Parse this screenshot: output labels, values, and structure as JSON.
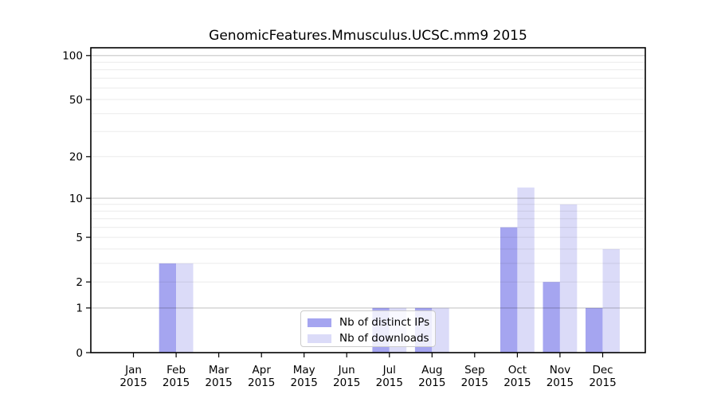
{
  "title": "GenomicFeatures.Mmusculus.UCSC.mm9 2015",
  "chart_data": {
    "type": "bar",
    "title": "GenomicFeatures.Mmusculus.UCSC.mm9 2015",
    "yscale": "log1p",
    "categories": [
      "Jan",
      "Feb",
      "Mar",
      "Apr",
      "May",
      "Jun",
      "Jul",
      "Aug",
      "Sep",
      "Oct",
      "Nov",
      "Dec"
    ],
    "x_year": "2015",
    "series": [
      {
        "name": "Nb of distinct IPs",
        "color": "#a5a5f0",
        "values": [
          0,
          3,
          0,
          0,
          0,
          0,
          1,
          1,
          0,
          6,
          2,
          1
        ]
      },
      {
        "name": "Nb of downloads",
        "color": "#dbdbf8",
        "values": [
          0,
          3,
          0,
          0,
          0,
          0,
          1,
          1,
          0,
          12,
          9,
          4
        ]
      }
    ],
    "yticks": [
      0,
      1,
      2,
      5,
      10,
      20,
      50,
      100
    ],
    "minor_grid_values": [
      2,
      3,
      4,
      5,
      6,
      7,
      8,
      9,
      20,
      30,
      40,
      50,
      60,
      70,
      80,
      90
    ],
    "major_grid_values": [
      1,
      10,
      100
    ],
    "ylim": [
      0,
      113
    ],
    "grid": "horizontal",
    "legend_position": "lower-center-inside"
  },
  "colors": {
    "background": "#ffffff",
    "spine": "#000000",
    "major_grid": "rgba(0,0,0,0.22)",
    "minor_grid": "rgba(0,0,0,0.08)",
    "tick": "#000000",
    "legend_border": "#cccccc"
  }
}
